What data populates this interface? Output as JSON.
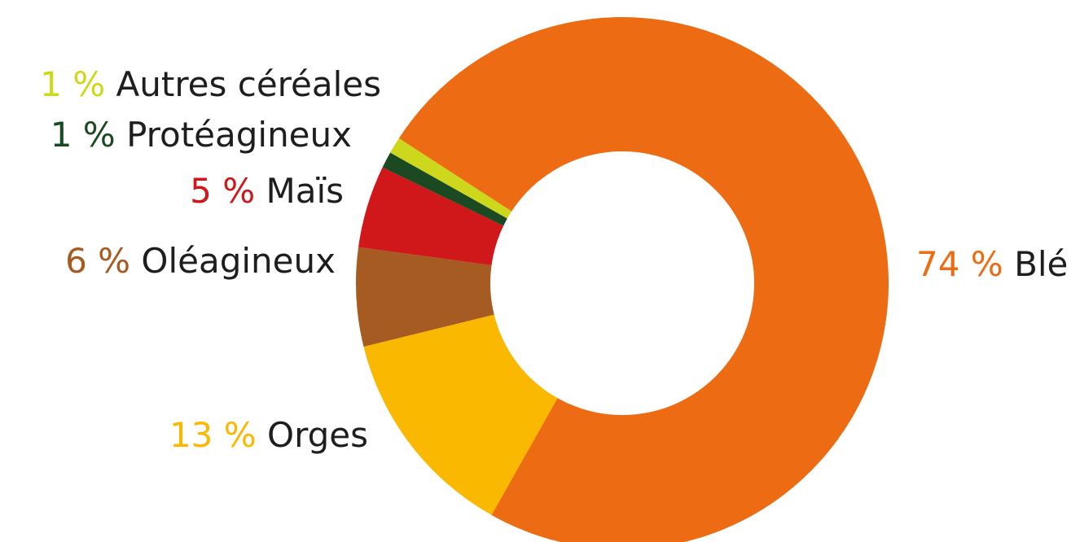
{
  "chart_data": {
    "type": "donut",
    "categories": [
      "Blé",
      "Orges",
      "Oléagineux",
      "Maïs",
      "Protéagineux",
      "Autres céréales"
    ],
    "values": [
      74,
      13,
      6,
      5,
      1,
      1
    ],
    "value_labels": [
      "74 %",
      "13 %",
      "6 %",
      "5 %",
      "1 %",
      "1 %"
    ],
    "colors": [
      "#ec6b13",
      "#fbb800",
      "#a65b22",
      "#d0181a",
      "#1b4a22",
      "#cdd81c"
    ]
  }
}
